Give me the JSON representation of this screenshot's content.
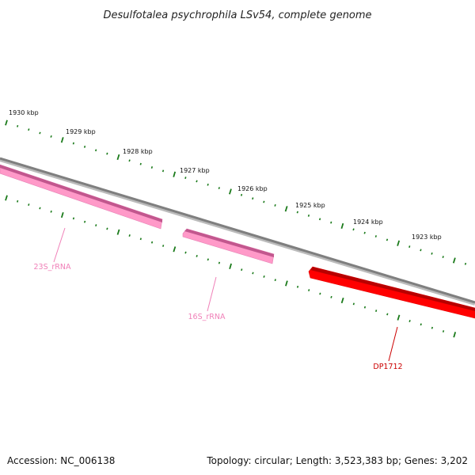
{
  "title": "Desulfotalea psychrophila LSv54, complete genome",
  "footer": {
    "accession": "Accession: NC_006138",
    "topology": "Topology: circular; Length: 3,523,383 bp; Genes: 3,202"
  },
  "ticks": [
    {
      "label": "1930 kbp"
    },
    {
      "label": "1929 kbp"
    },
    {
      "label": "1928 kbp"
    },
    {
      "label": "1927 kbp"
    },
    {
      "label": "1926 kbp"
    },
    {
      "label": "1925 kbp"
    },
    {
      "label": "1924 kbp"
    },
    {
      "label": "1923 kbp"
    }
  ],
  "features": [
    {
      "label": "23S_rRNA",
      "color": "#ff99c8",
      "dark": "#c2578e"
    },
    {
      "label": "16S_rRNA",
      "color": "#ff99c8",
      "dark": "#c2578e"
    },
    {
      "label": "DP1712",
      "color": "#ff0000",
      "dark": "#b80000"
    }
  ],
  "colors": {
    "backbone": "#7f7f7f",
    "ticks": "#1a7a1a",
    "rna_label": "#f080b8",
    "gene_label": "#cc0000"
  }
}
